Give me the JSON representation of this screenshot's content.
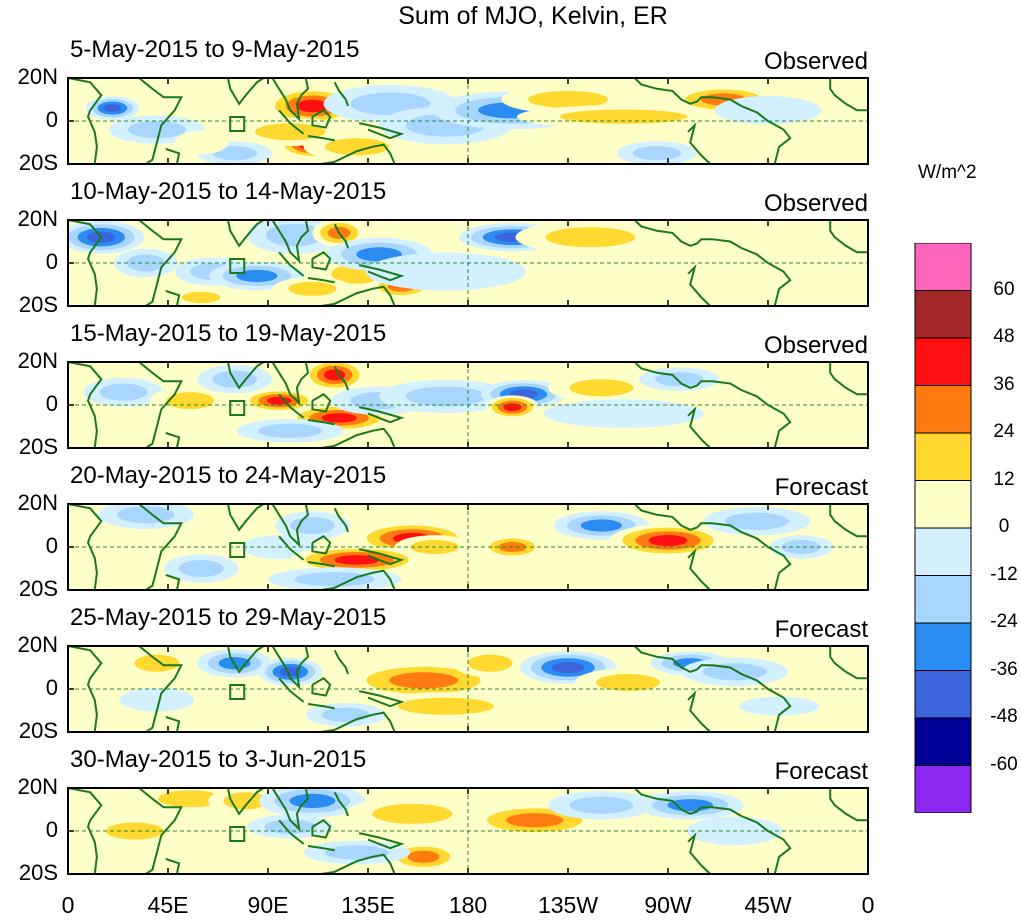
{
  "title": "Sum of MJO, Kelvin, ER",
  "panels": [
    {
      "date_range": "5-May-2015 to 9-May-2015",
      "status": "Observed",
      "blobs": [
        [
          20,
          6,
          10,
          5,
          -40
        ],
        [
          40,
          -4,
          18,
          6,
          -22
        ],
        [
          75,
          -15,
          14,
          5,
          -18
        ],
        [
          110,
          7,
          18,
          8,
          40
        ],
        [
          112,
          -11,
          15,
          6,
          55
        ],
        [
          100,
          -5,
          22,
          6,
          15
        ],
        [
          130,
          -12,
          20,
          6,
          22
        ],
        [
          145,
          8,
          25,
          8,
          -22
        ],
        [
          170,
          -2,
          25,
          8,
          -18
        ],
        [
          200,
          5,
          30,
          8,
          -30
        ],
        [
          225,
          10,
          25,
          6,
          18
        ],
        [
          250,
          2,
          40,
          5,
          14
        ],
        [
          265,
          -15,
          15,
          5,
          -14
        ],
        [
          295,
          10,
          20,
          6,
          30
        ],
        [
          315,
          5,
          20,
          6,
          -10
        ],
        [
          60,
          -10,
          10,
          5,
          12
        ]
      ]
    },
    {
      "date_range": "10-May-2015 to 14-May-2015",
      "status": "Observed",
      "blobs": [
        [
          15,
          12,
          16,
          7,
          -40
        ],
        [
          35,
          0,
          12,
          6,
          -18
        ],
        [
          65,
          -4,
          14,
          6,
          -20
        ],
        [
          85,
          -6,
          18,
          6,
          -30
        ],
        [
          102,
          13,
          18,
          8,
          -20
        ],
        [
          122,
          14,
          10,
          6,
          35
        ],
        [
          130,
          -5,
          16,
          7,
          20
        ],
        [
          110,
          -12,
          15,
          5,
          25
        ],
        [
          150,
          -11,
          12,
          5,
          30
        ],
        [
          140,
          4,
          20,
          7,
          -30
        ],
        [
          200,
          12,
          20,
          6,
          -40
        ],
        [
          235,
          12,
          28,
          7,
          25
        ],
        [
          250,
          0,
          40,
          6,
          8
        ],
        [
          170,
          -4,
          30,
          8,
          -8
        ],
        [
          60,
          -16,
          12,
          4,
          20
        ]
      ]
    },
    {
      "date_range": "15-May-2015 to 19-May-2015",
      "status": "Observed",
      "blobs": [
        [
          25,
          6,
          15,
          6,
          -18
        ],
        [
          55,
          2,
          15,
          6,
          18
        ],
        [
          75,
          12,
          14,
          6,
          -20
        ],
        [
          95,
          2,
          14,
          5,
          40
        ],
        [
          120,
          14,
          12,
          7,
          40
        ],
        [
          122,
          -6,
          20,
          6,
          40
        ],
        [
          140,
          2,
          18,
          6,
          -25
        ],
        [
          170,
          4,
          25,
          7,
          -18
        ],
        [
          205,
          5,
          16,
          6,
          -40
        ],
        [
          200,
          -1,
          10,
          5,
          45
        ],
        [
          240,
          8,
          20,
          6,
          20
        ],
        [
          275,
          12,
          15,
          5,
          -25
        ],
        [
          250,
          -4,
          30,
          6,
          -10
        ],
        [
          100,
          -12,
          20,
          5,
          -18
        ]
      ]
    },
    {
      "date_range": "20-May-2015 to 24-May-2015",
      "status": "Forecast",
      "blobs": [
        [
          35,
          15,
          18,
          6,
          -20
        ],
        [
          60,
          -10,
          14,
          6,
          -18
        ],
        [
          95,
          0,
          14,
          5,
          -12
        ],
        [
          110,
          10,
          14,
          6,
          -20
        ],
        [
          155,
          4,
          22,
          7,
          40
        ],
        [
          130,
          -6,
          25,
          6,
          45
        ],
        [
          200,
          0,
          12,
          5,
          30
        ],
        [
          165,
          0,
          15,
          5,
          20
        ],
        [
          240,
          10,
          18,
          6,
          -30
        ],
        [
          270,
          3,
          22,
          7,
          42
        ],
        [
          310,
          12,
          20,
          6,
          -18
        ],
        [
          330,
          0,
          12,
          5,
          -25
        ],
        [
          120,
          -15,
          25,
          5,
          -15
        ]
      ]
    },
    {
      "date_range": "25-May-2015 to 29-May-2015",
      "status": "Forecast",
      "blobs": [
        [
          40,
          12,
          14,
          6,
          20
        ],
        [
          75,
          12,
          14,
          6,
          -28
        ],
        [
          100,
          8,
          12,
          6,
          -40
        ],
        [
          160,
          4,
          30,
          8,
          35
        ],
        [
          170,
          -8,
          30,
          6,
          18
        ],
        [
          190,
          12,
          14,
          6,
          20
        ],
        [
          225,
          10,
          18,
          7,
          -45
        ],
        [
          252,
          3,
          20,
          6,
          20
        ],
        [
          280,
          12,
          15,
          5,
          -28
        ],
        [
          300,
          8,
          20,
          6,
          -15
        ],
        [
          125,
          -12,
          15,
          5,
          -18
        ],
        [
          320,
          -8,
          15,
          4,
          -12
        ],
        [
          40,
          -5,
          14,
          5,
          -10
        ]
      ]
    },
    {
      "date_range": "30-May-2015 to 3-Jun-2015",
      "status": "Forecast",
      "blobs": [
        [
          55,
          15,
          20,
          6,
          20
        ],
        [
          80,
          14,
          14,
          6,
          22
        ],
        [
          110,
          14,
          20,
          7,
          -35
        ],
        [
          100,
          2,
          16,
          5,
          -18
        ],
        [
          155,
          8,
          25,
          7,
          25
        ],
        [
          160,
          -12,
          14,
          6,
          32
        ],
        [
          210,
          5,
          25,
          7,
          36
        ],
        [
          240,
          12,
          20,
          6,
          -18
        ],
        [
          280,
          12,
          20,
          6,
          -30
        ],
        [
          300,
          0,
          18,
          6,
          -12
        ],
        [
          130,
          -10,
          20,
          5,
          -15
        ],
        [
          30,
          0,
          18,
          6,
          15
        ]
      ]
    }
  ],
  "lat_labels": [
    "20N",
    "0",
    "20S"
  ],
  "x_ticks": [
    "0",
    "45E",
    "90E",
    "135E",
    "180",
    "135W",
    "90W",
    "45W",
    "0"
  ],
  "colorbar": {
    "unit": "W/m^2",
    "levels": [
      "60",
      "48",
      "36",
      "24",
      "12",
      "0",
      "-12",
      "-24",
      "-36",
      "-48",
      "-60"
    ],
    "colors": [
      "#ff66bb",
      "#a52828",
      "#ff1010",
      "#ff7a10",
      "#ffd830",
      "#ffffc8",
      "#d2f0ff",
      "#a8d6ff",
      "#2a8cf0",
      "#3c64dc",
      "#000096",
      "#8a28f0"
    ]
  },
  "chart_data": {
    "type": "heatmap",
    "title": "Sum of MJO, Kelvin, ER",
    "xlabel": "",
    "ylabel": "",
    "x_range": [
      0,
      360
    ],
    "y_range": [
      -20,
      20
    ],
    "x_ticks": [
      "0",
      "45E",
      "90E",
      "135E",
      "180",
      "135W",
      "90W",
      "45W",
      "0"
    ],
    "y_ticks": [
      "20N",
      "0",
      "20S"
    ],
    "color_levels": [
      -60,
      -48,
      -36,
      -24,
      -12,
      0,
      12,
      24,
      36,
      48,
      60
    ],
    "unit": "W/m^2",
    "panels": [
      "5-May-2015 to 9-May-2015",
      "10-May-2015 to 14-May-2015",
      "15-May-2015 to 19-May-2015",
      "20-May-2015 to 24-May-2015",
      "25-May-2015 to 29-May-2015",
      "30-May-2015 to 3-Jun-2015"
    ]
  }
}
